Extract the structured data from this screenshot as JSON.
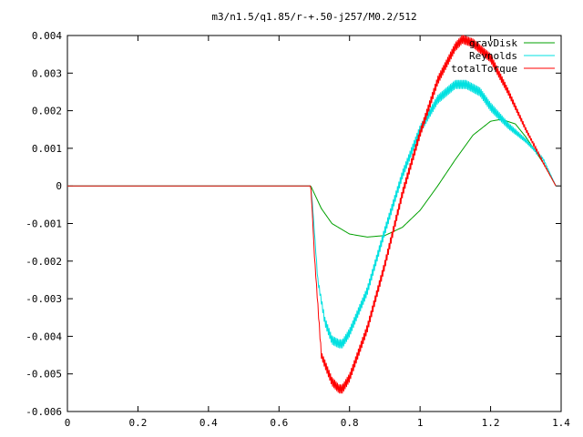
{
  "chart_data": {
    "type": "line",
    "title": "m3/n1.5/q1.85/r-+.50-j257/M0.2/512",
    "xlabel": "",
    "ylabel": "",
    "xlim": [
      0,
      1.4
    ],
    "ylim": [
      -0.006,
      0.004
    ],
    "xticks": [
      0,
      0.2,
      0.4,
      0.6,
      0.8,
      1,
      1.2,
      1.4
    ],
    "xtick_labels": [
      "0",
      "0.2",
      "0.4",
      "0.6",
      "0.8",
      "1",
      "1.2",
      "1.4"
    ],
    "yticks": [
      -0.006,
      -0.005,
      -0.004,
      -0.003,
      -0.002,
      -0.001,
      0,
      0.001,
      0.002,
      0.003,
      0.004
    ],
    "ytick_labels": [
      "-0.006",
      "-0.005",
      "-0.004",
      "-0.003",
      "-0.002",
      "-0.001",
      "0",
      "0.001",
      "0.002",
      "0.003",
      "0.004"
    ],
    "grid": false,
    "legend_position": "top-right",
    "series": [
      {
        "name": "gravDisk",
        "color": "#00a000",
        "noisy": false,
        "x": [
          0,
          0.69,
          0.7,
          0.72,
          0.75,
          0.8,
          0.85,
          0.9,
          0.95,
          1.0,
          1.05,
          1.1,
          1.15,
          1.2,
          1.23,
          1.27,
          1.3,
          1.35,
          1.385
        ],
        "y": [
          0,
          0,
          -0.0002,
          -0.0006,
          -0.001,
          -0.00128,
          -0.00136,
          -0.00132,
          -0.0011,
          -0.00065,
          0,
          0.0007,
          0.00135,
          0.00172,
          0.00177,
          0.00165,
          0.0013,
          0.0006,
          0
        ]
      },
      {
        "name": "Reynolds",
        "color": "#00e0e0",
        "noisy": true,
        "x": [
          0,
          0.69,
          0.695,
          0.71,
          0.73,
          0.75,
          0.77,
          0.78,
          0.8,
          0.85,
          0.9,
          0.95,
          1.0,
          1.05,
          1.1,
          1.13,
          1.17,
          1.2,
          1.25,
          1.3,
          1.35,
          1.385
        ],
        "y": [
          0,
          0,
          -0.0005,
          -0.0025,
          -0.0036,
          -0.0041,
          -0.0042,
          -0.0042,
          -0.0039,
          -0.0028,
          -0.0012,
          0.0003,
          0.0015,
          0.0023,
          0.0027,
          0.0027,
          0.0025,
          0.0021,
          0.0016,
          0.0012,
          0.0007,
          0
        ]
      },
      {
        "name": "totalTorque",
        "color": "#ff0000",
        "noisy": true,
        "x": [
          0,
          0.69,
          0.695,
          0.7,
          0.72,
          0.75,
          0.77,
          0.78,
          0.8,
          0.85,
          0.9,
          0.95,
          1.0,
          1.05,
          1.1,
          1.12,
          1.15,
          1.2,
          1.25,
          1.3,
          1.35,
          1.385
        ],
        "y": [
          0,
          0,
          -0.0008,
          -0.0018,
          -0.0045,
          -0.0052,
          -0.0054,
          -0.0054,
          -0.0051,
          -0.0038,
          -0.0021,
          -0.0002,
          0.0014,
          0.0028,
          0.0037,
          0.0039,
          0.0038,
          0.0034,
          0.0025,
          0.0015,
          0.0006,
          0
        ]
      }
    ]
  }
}
